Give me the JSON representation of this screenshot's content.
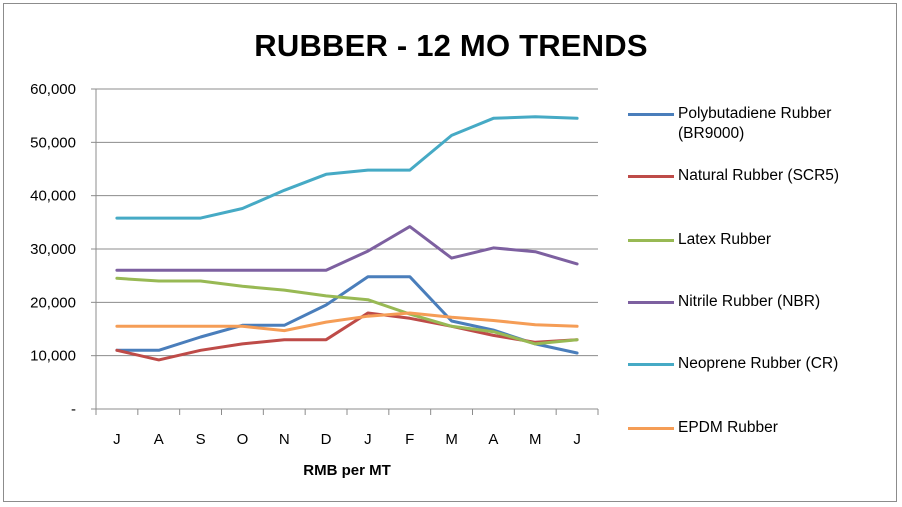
{
  "chart_data": {
    "type": "line",
    "title": "RUBBER - 12 MO TRENDS",
    "xlabel": "RMB per MT",
    "ylabel": "",
    "categories": [
      "J",
      "A",
      "S",
      "O",
      "N",
      "D",
      "J",
      "F",
      "M",
      "A",
      "M",
      "J"
    ],
    "ylim": [
      0,
      60000
    ],
    "yticks": [
      0,
      10000,
      20000,
      30000,
      40000,
      50000,
      60000
    ],
    "ytick_labels": [
      "-",
      "10,000",
      "20,000",
      "30,000",
      "40,000",
      "50,000",
      "60,000"
    ],
    "grid": true,
    "legend_position": "right",
    "series": [
      {
        "name": "Polybutadiene Rubber (BR9000)",
        "color": "#4a7ebb",
        "values": [
          11000,
          11000,
          13500,
          15700,
          15700,
          19500,
          24800,
          24800,
          16500,
          14800,
          12200,
          10500
        ]
      },
      {
        "name": "Natural Rubber (SCR5)",
        "color": "#be4b48",
        "values": [
          11000,
          9200,
          11000,
          12200,
          13000,
          13000,
          18000,
          17000,
          15500,
          13800,
          12500,
          13000
        ]
      },
      {
        "name": "Latex Rubber",
        "color": "#98b954",
        "values": [
          24500,
          24000,
          24000,
          23000,
          22300,
          21200,
          20500,
          17800,
          15500,
          14500,
          12200,
          13000
        ]
      },
      {
        "name": "Nitrile Rubber (NBR)",
        "color": "#7d60a0",
        "values": [
          26000,
          26000,
          26000,
          26000,
          26000,
          26000,
          29600,
          34200,
          28300,
          30200,
          29500,
          27200
        ]
      },
      {
        "name": "Neoprene Rubber (CR)",
        "color": "#46aac5",
        "values": [
          35800,
          35800,
          35800,
          37600,
          41000,
          44000,
          44800,
          44800,
          51300,
          54500,
          54800,
          54500
        ]
      },
      {
        "name": "EPDM Rubber",
        "color": "#f59d56",
        "values": [
          15500,
          15500,
          15500,
          15500,
          14700,
          16300,
          17400,
          18000,
          17200,
          16600,
          15800,
          15500
        ]
      }
    ]
  }
}
